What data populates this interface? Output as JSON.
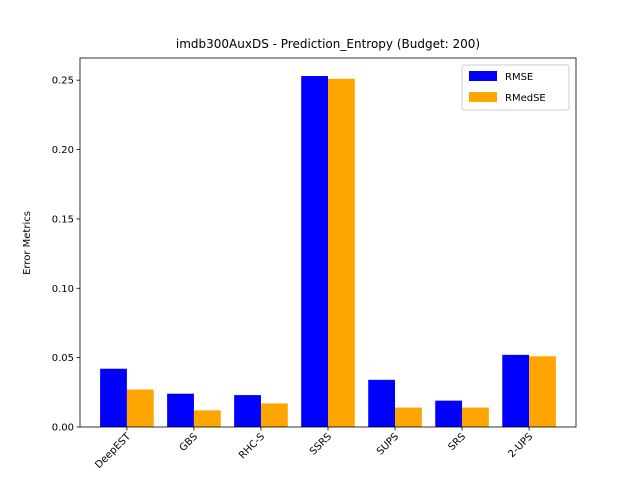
{
  "chart_data": {
    "type": "bar",
    "title": "imdb300AuxDS - Prediction_Entropy (Budget: 200)",
    "xlabel": "",
    "ylabel": "Error Metrics",
    "categories": [
      "DeepEST",
      "GBS",
      "RHC-S",
      "SSRS",
      "SUPS",
      "SRS",
      "2-UPS"
    ],
    "series": [
      {
        "name": "RMSE",
        "color": "#0000ff",
        "values": [
          0.042,
          0.024,
          0.023,
          0.253,
          0.034,
          0.019,
          0.052
        ]
      },
      {
        "name": "RMedSE",
        "color": "#ffa500",
        "values": [
          0.027,
          0.012,
          0.017,
          0.251,
          0.014,
          0.014,
          0.051
        ]
      }
    ],
    "ylim": [
      0,
      0.266
    ],
    "yticks": [
      "0.00",
      "0.05",
      "0.10",
      "0.15",
      "0.20",
      "0.25"
    ],
    "legend_position": "top-right",
    "grid": false
  }
}
